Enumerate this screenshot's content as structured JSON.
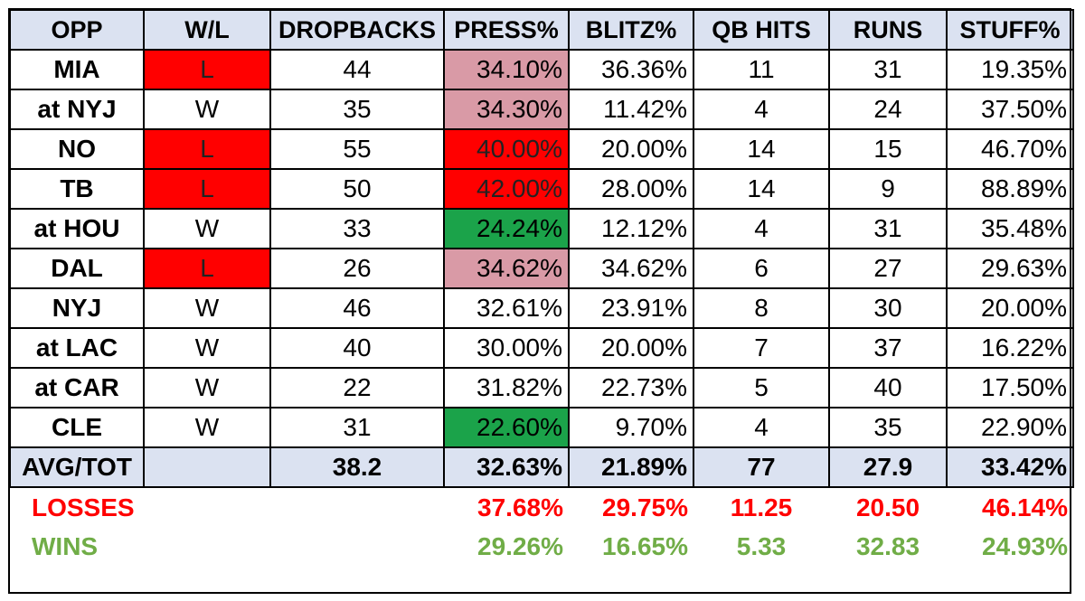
{
  "headers": [
    "OPP",
    "W/L",
    "DROPBACKS",
    "PRESS%",
    "BLITZ%",
    "QB HITS",
    "RUNS",
    "STUFF%"
  ],
  "games": [
    {
      "opp": "MIA",
      "wl": "L",
      "dropbacks": "44",
      "press": "34.10%",
      "blitz": "36.36%",
      "qb_hits": "11",
      "runs": "31",
      "stuff": "19.35%",
      "press_color": "pink"
    },
    {
      "opp": "at NYJ",
      "wl": "W",
      "dropbacks": "35",
      "press": "34.30%",
      "blitz": "11.42%",
      "qb_hits": "4",
      "runs": "24",
      "stuff": "37.50%",
      "press_color": "pink"
    },
    {
      "opp": "NO",
      "wl": "L",
      "dropbacks": "55",
      "press": "40.00%",
      "blitz": "20.00%",
      "qb_hits": "14",
      "runs": "15",
      "stuff": "46.70%",
      "press_color": "red"
    },
    {
      "opp": "TB",
      "wl": "L",
      "dropbacks": "50",
      "press": "42.00%",
      "blitz": "28.00%",
      "qb_hits": "14",
      "runs": "9",
      "stuff": "88.89%",
      "press_color": "red"
    },
    {
      "opp": "at HOU",
      "wl": "W",
      "dropbacks": "33",
      "press": "24.24%",
      "blitz": "12.12%",
      "qb_hits": "4",
      "runs": "31",
      "stuff": "35.48%",
      "press_color": "green"
    },
    {
      "opp": "DAL",
      "wl": "L",
      "dropbacks": "26",
      "press": "34.62%",
      "blitz": "34.62%",
      "qb_hits": "6",
      "runs": "27",
      "stuff": "29.63%",
      "press_color": "pink"
    },
    {
      "opp": "NYJ",
      "wl": "W",
      "dropbacks": "46",
      "press": "32.61%",
      "blitz": "23.91%",
      "qb_hits": "8",
      "runs": "30",
      "stuff": "20.00%",
      "press_color": ""
    },
    {
      "opp": "at LAC",
      "wl": "W",
      "dropbacks": "40",
      "press": "30.00%",
      "blitz": "20.00%",
      "qb_hits": "7",
      "runs": "37",
      "stuff": "16.22%",
      "press_color": ""
    },
    {
      "opp": "at CAR",
      "wl": "W",
      "dropbacks": "22",
      "press": "31.82%",
      "blitz": "22.73%",
      "qb_hits": "5",
      "runs": "40",
      "stuff": "17.50%",
      "press_color": ""
    },
    {
      "opp": "CLE",
      "wl": "W",
      "dropbacks": "31",
      "press": "22.60%",
      "blitz": "9.70%",
      "qb_hits": "4",
      "runs": "35",
      "stuff": "22.90%",
      "press_color": "green"
    }
  ],
  "avg": {
    "label": "AVG/TOT",
    "wl": "",
    "dropbacks": "38.2",
    "press": "32.63%",
    "blitz": "21.89%",
    "qb_hits": "77",
    "runs": "27.9",
    "stuff": "33.42%"
  },
  "losses": {
    "label": "LOSSES",
    "press": "37.68%",
    "blitz": "29.75%",
    "qb_hits": "11.25",
    "runs": "20.50",
    "stuff": "46.14%"
  },
  "wins": {
    "label": "WINS",
    "press": "29.26%",
    "blitz": "16.65%",
    "qb_hits": "5.33",
    "runs": "32.83",
    "stuff": "24.93%"
  },
  "colors": {
    "loss": "#ff0000",
    "high_press": "#ff0000",
    "mid_press": "#d99aa6",
    "low_press": "#1ba34a",
    "header_bg": "#dbe2f1",
    "wins_text": "#70ad47"
  }
}
